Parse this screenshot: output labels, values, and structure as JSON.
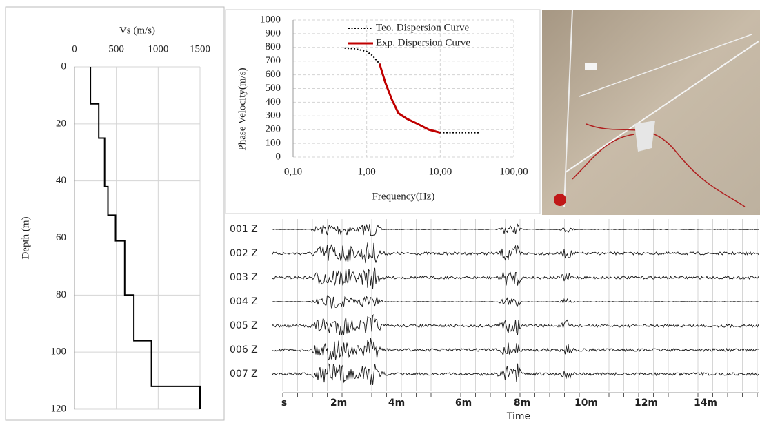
{
  "chart_data": [
    {
      "type": "line",
      "title": "Vs (m/s)",
      "ylabel": "Depth (m)",
      "x_axis": "top",
      "y_inverted": true,
      "xlim": [
        0,
        1500
      ],
      "xticks": [
        0,
        500,
        1000,
        1500
      ],
      "ylim": [
        0,
        120
      ],
      "yticks": [
        0,
        20,
        40,
        60,
        80,
        100,
        120
      ],
      "grid": true,
      "series": [
        {
          "color": "#000000",
          "style": "solid",
          "x": [
            190,
            190,
            290,
            290,
            360,
            360,
            400,
            400,
            490,
            490,
            600,
            600,
            710,
            710,
            920,
            920,
            1500,
            1500
          ],
          "values": [
            0,
            13,
            13,
            25,
            25,
            42,
            42,
            52,
            52,
            61,
            61,
            80,
            80,
            96,
            96,
            112,
            112,
            120
          ]
        }
      ]
    },
    {
      "type": "line",
      "xlabel": "Frequency(Hz)",
      "ylabel": "Phase Velocity(m/s)",
      "xscale": "log",
      "xlim": [
        0.1,
        100
      ],
      "xticks": [
        {
          "value": 0.1,
          "label": "0,10"
        },
        {
          "value": 1,
          "label": "1,00"
        },
        {
          "value": 10,
          "label": "10,00"
        },
        {
          "value": 100,
          "label": "100,00"
        }
      ],
      "ylim": [
        0,
        1000
      ],
      "yticks": [
        0,
        100,
        200,
        300,
        400,
        500,
        600,
        700,
        800,
        900,
        1000
      ],
      "grid": true,
      "legend": "upper right",
      "series": [
        {
          "name": "Teo. Dispersion Curve",
          "color": "#000000",
          "style": "dotted",
          "x": [
            0.5,
            0.7,
            1,
            1.2,
            1.5,
            1.8,
            2.2,
            2.7,
            3.5,
            5,
            7,
            10,
            15,
            20,
            35
          ],
          "values": [
            795,
            790,
            770,
            740,
            680,
            540,
            420,
            320,
            280,
            240,
            200,
            178,
            178,
            178,
            178
          ]
        },
        {
          "name": "Exp. Dispersion Curve",
          "color": "#c00000",
          "style": "solid",
          "x": [
            1.5,
            1.8,
            2.2,
            2.7,
            3.5,
            5,
            7,
            10
          ],
          "values": [
            680,
            540,
            420,
            320,
            280,
            240,
            200,
            178
          ]
        }
      ]
    }
  ],
  "seismogram": {
    "traces": [
      "001 Z",
      "002 Z",
      "003 Z",
      "004 Z",
      "005 Z",
      "006 Z",
      "007 Z"
    ],
    "time_ticks": [
      "s",
      "2m",
      "4m",
      "6m",
      "8m",
      "10m",
      "12m",
      "14m"
    ],
    "xlabel": "Time"
  }
}
